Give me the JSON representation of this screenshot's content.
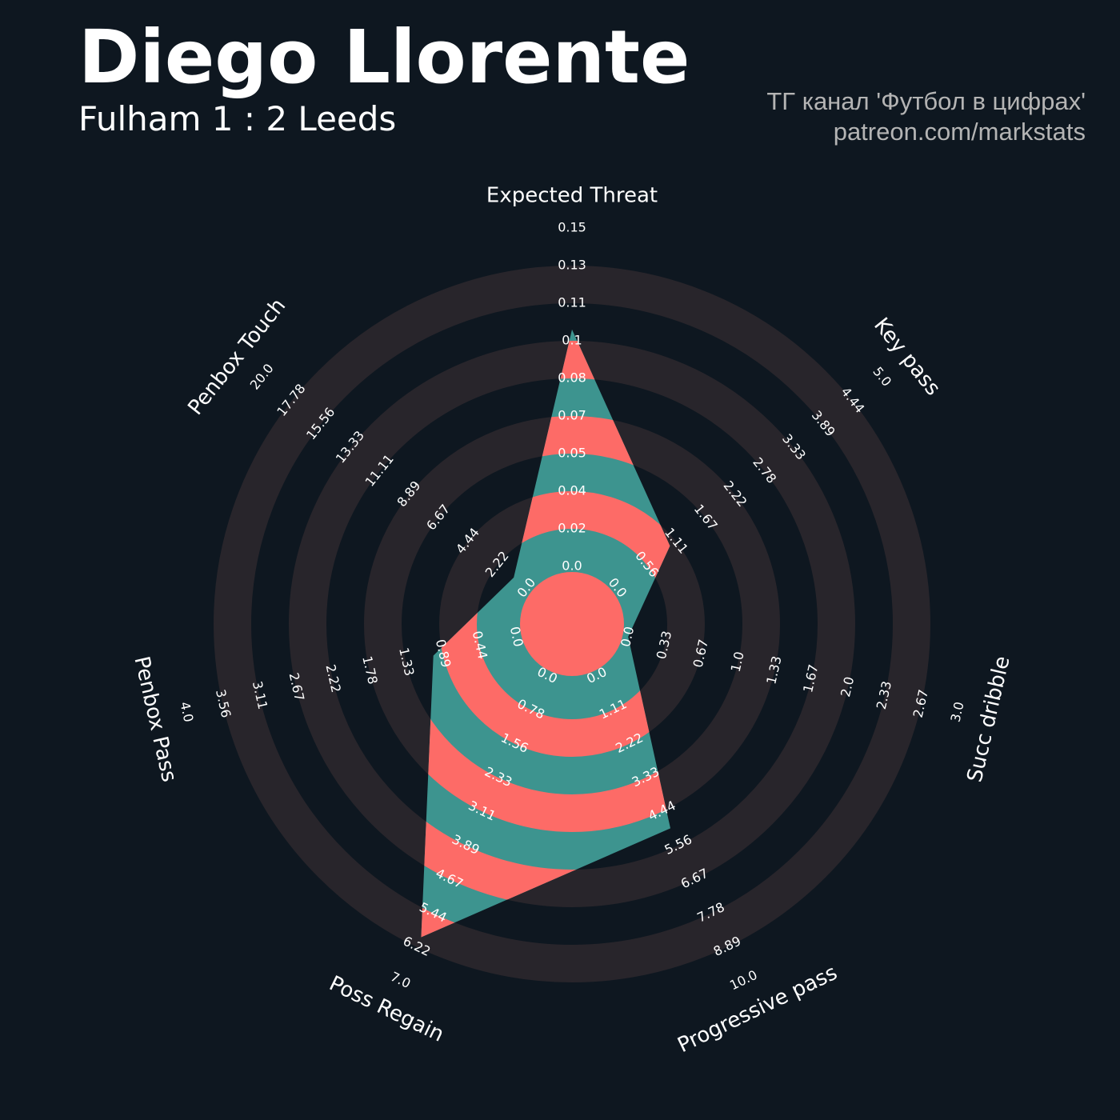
{
  "chart_data": {
    "type": "radar",
    "title": "Diego Llorente",
    "subtitle": "Fulham 1 : 2 Leeds",
    "credits": [
      "ТГ канал 'Футбол в цифрах'",
      "patreon.com/markstats"
    ],
    "colors": {
      "background": "#0e1720",
      "rings": "#28252b",
      "fill": "#3d948f",
      "band": "#fd6b67"
    },
    "params": [
      {
        "name": "Expected Threat",
        "value": 0.105,
        "range": [
          0,
          0.15
        ],
        "ticks": [
          {
            "value": 0,
            "label": "0.0"
          },
          0.02,
          0.04,
          0.05,
          0.07,
          0.08,
          0.1,
          0.11,
          0.13,
          0.15
        ]
      },
      {
        "name": "Key pass",
        "value": 1,
        "range": [
          0,
          5
        ],
        "ticks": [
          {
            "value": 0,
            "label": "0.0"
          },
          0.56,
          1.11,
          1.67,
          2.22,
          2.78,
          3.33,
          3.89,
          4.44,
          {
            "value": 5,
            "label": "5.0"
          }
        ]
      },
      {
        "name": "Succ dribble",
        "value": 0,
        "range": [
          0,
          3
        ],
        "ticks": [
          {
            "value": 0,
            "label": "0.0"
          },
          0.33,
          0.67,
          {
            "value": 1,
            "label": "1.0"
          },
          1.33,
          1.67,
          {
            "value": 2,
            "label": "2.0"
          },
          2.33,
          2.67,
          {
            "value": 3,
            "label": "3.0"
          }
        ]
      },
      {
        "name": "Progressive pass",
        "value": 5,
        "range": [
          0,
          10
        ],
        "ticks": [
          {
            "value": 0,
            "label": "0.0"
          },
          1.11,
          2.22,
          3.33,
          4.44,
          5.56,
          6.67,
          7.78,
          8.89,
          {
            "value": 10,
            "label": "10.0"
          }
        ]
      },
      {
        "name": "Poss Regain",
        "value": 6,
        "range": [
          0,
          7
        ],
        "ticks": [
          {
            "value": 0,
            "label": "0.0"
          },
          0.78,
          1.56,
          2.33,
          3.11,
          3.89,
          4.67,
          5.44,
          6.22,
          {
            "value": 7,
            "label": "7.0"
          }
        ]
      },
      {
        "name": "Penbox Pass",
        "value": 1,
        "range": [
          0,
          4
        ],
        "ticks": [
          {
            "value": 0,
            "label": "0.0"
          },
          0.44,
          0.89,
          1.33,
          1.78,
          2.22,
          2.67,
          3.11,
          3.56,
          {
            "value": 4,
            "label": "4.0"
          }
        ]
      },
      {
        "name": "Penbox Touch",
        "value": 1,
        "range": [
          0,
          20
        ],
        "ticks": [
          {
            "value": 0,
            "label": "0.0"
          },
          2.22,
          4.44,
          6.67,
          8.89,
          11.11,
          13.33,
          15.56,
          17.78,
          {
            "value": 20,
            "label": "20.0"
          }
        ]
      }
    ]
  }
}
